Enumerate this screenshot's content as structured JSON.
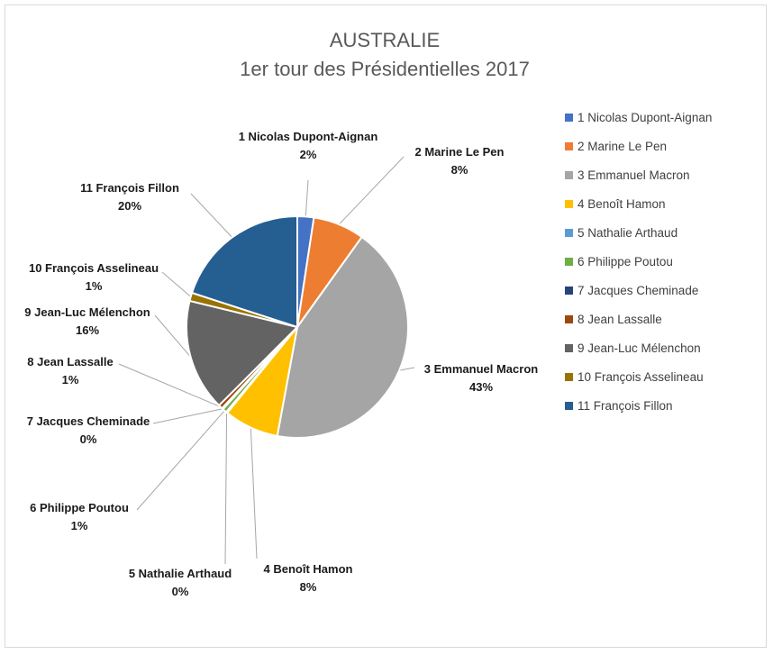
{
  "chart_data": {
    "type": "pie",
    "title": "AUSTRALIE",
    "subtitle": "1er tour des Présidentielles 2017",
    "legend_position": "right",
    "slices": [
      {
        "label": "1 Nicolas Dupont-Aignan",
        "value": 2.4,
        "pct_label": "2%",
        "color": "#4472C4"
      },
      {
        "label": "2 Marine Le Pen",
        "value": 7.5,
        "pct_label": "8%",
        "color": "#ED7D31"
      },
      {
        "label": "3 Emmanuel Macron",
        "value": 43.0,
        "pct_label": "43%",
        "color": "#A5A5A5"
      },
      {
        "label": "4 Benoît Hamon",
        "value": 8.0,
        "pct_label": "8%",
        "color": "#FFC000"
      },
      {
        "label": "5 Nathalie Arthaud",
        "value": 0.2,
        "pct_label": "0%",
        "color": "#5B9BD5"
      },
      {
        "label": "6 Philippe Poutou",
        "value": 0.6,
        "pct_label": "1%",
        "color": "#70AD47"
      },
      {
        "label": "7 Jacques Cheminade",
        "value": 0.2,
        "pct_label": "0%",
        "color": "#264478"
      },
      {
        "label": "8 Jean Lassalle",
        "value": 0.6,
        "pct_label": "1%",
        "color": "#9E480E"
      },
      {
        "label": "9 Jean-Luc Mélenchon",
        "value": 16.3,
        "pct_label": "16%",
        "color": "#636363"
      },
      {
        "label": "10 François Asselineau",
        "value": 1.2,
        "pct_label": "1%",
        "color": "#997300"
      },
      {
        "label": "11 François Fillon",
        "value": 20.0,
        "pct_label": "20%",
        "color": "#255E91"
      }
    ]
  }
}
